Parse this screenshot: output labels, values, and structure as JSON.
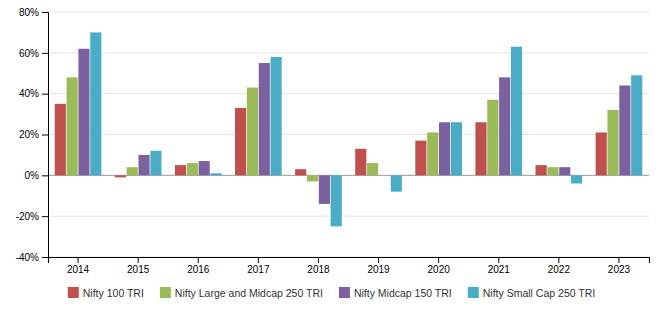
{
  "chart_data": {
    "type": "bar",
    "categories": [
      "2014",
      "2015",
      "2016",
      "2017",
      "2018",
      "2019",
      "2020",
      "2021",
      "2022",
      "2023"
    ],
    "series": [
      {
        "name": "Nifty 100 TRI",
        "color": "#C0504D",
        "values": [
          35,
          -1,
          5,
          33,
          3,
          13,
          17,
          26,
          5,
          21
        ]
      },
      {
        "name": "Nifty Large and Midcap 250 TRI",
        "color": "#9BBB59",
        "values": [
          48,
          4,
          6,
          43,
          -3,
          6,
          21,
          37,
          4,
          32
        ]
      },
      {
        "name": "Nifty Midcap 150 TRI",
        "color": "#7B61A0",
        "values": [
          62,
          10,
          7,
          55,
          -14,
          0,
          26,
          48,
          4,
          44
        ]
      },
      {
        "name": "Nifty Small Cap 250 TRI",
        "color": "#4BACC6",
        "values": [
          70,
          12,
          1,
          58,
          -25,
          -8,
          26,
          63,
          -4,
          49
        ]
      }
    ],
    "ylim": [
      -40,
      80
    ],
    "yticks": [
      {
        "value": -40,
        "label": "-40%"
      },
      {
        "value": -20,
        "label": "-20%"
      },
      {
        "value": 0,
        "label": "0%"
      },
      {
        "value": 20,
        "label": "20%"
      },
      {
        "value": 40,
        "label": "40%"
      },
      {
        "value": 60,
        "label": "60%"
      },
      {
        "value": 80,
        "label": "80%"
      }
    ],
    "grid": true,
    "legend": "bottom"
  }
}
